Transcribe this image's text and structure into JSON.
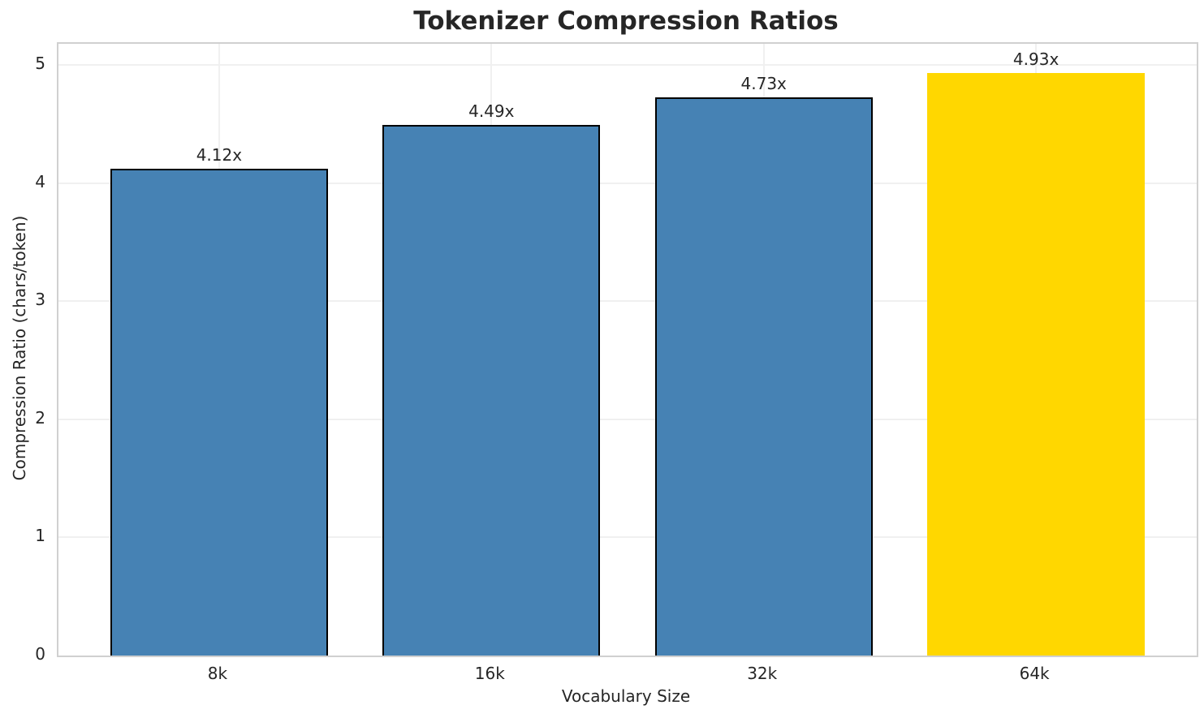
{
  "chart_data": {
    "type": "bar",
    "title": "Tokenizer Compression Ratios",
    "xlabel": "Vocabulary Size",
    "ylabel": "Compression Ratio (chars/token)",
    "categories": [
      "8k",
      "16k",
      "32k",
      "64k"
    ],
    "values": [
      4.12,
      4.49,
      4.73,
      4.93
    ],
    "bar_labels": [
      "4.12x",
      "4.49x",
      "4.73x",
      "4.93x"
    ],
    "bar_colors": [
      "#4682B4",
      "#4682B4",
      "#4682B4",
      "#FFD700"
    ],
    "bar_edge_colors": [
      "#000000",
      "#000000",
      "#000000",
      "#FFD700"
    ],
    "yticks": [
      "0",
      "1",
      "2",
      "3",
      "4",
      "5"
    ],
    "ylim": [
      0,
      5.18
    ],
    "xlim": [
      -0.59,
      3.59
    ],
    "bar_width": 0.8,
    "grid": true,
    "legend": null,
    "colors": {
      "highlight": "#FFD700",
      "default_bar": "#4682B4",
      "grid": "#f0f0f0",
      "spine": "#d0d0d0",
      "text": "#262626"
    }
  }
}
